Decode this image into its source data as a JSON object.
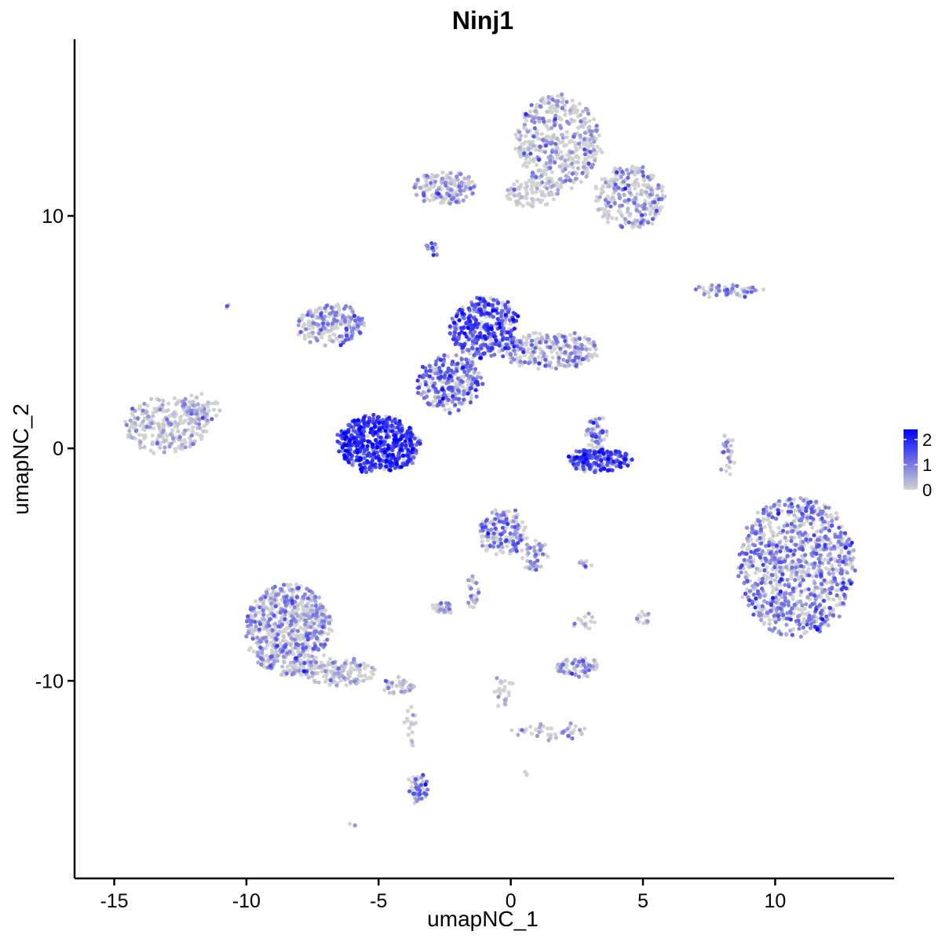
{
  "chart_data": {
    "type": "scatter",
    "title": "Ninj1",
    "xlabel": "umapNC_1",
    "ylabel": "umapNC_2",
    "xlim": [
      -16.5,
      14.5
    ],
    "ylim": [
      -18.5,
      17.6
    ],
    "xticks": [
      -15,
      -10,
      -5,
      0,
      5,
      10
    ],
    "xtick_labels": [
      "-15",
      "-10",
      "-5",
      "0",
      "5",
      "10"
    ],
    "yticks": [
      -10,
      0,
      10
    ],
    "ytick_labels": [
      "-10",
      "0",
      "10"
    ],
    "grid": false,
    "legend": {
      "placement": "right",
      "title": "",
      "ticks": [
        0,
        1,
        2
      ],
      "tick_labels": [
        "0",
        "1",
        "2"
      ],
      "range": [
        0,
        2.4
      ],
      "low_color": "#d3d3d3",
      "high_color": "#0000ff"
    },
    "clusters": [
      {
        "label_x": 1.8,
        "label_y": 13.2,
        "rx": 1.6,
        "ry": 2.0,
        "expr": 0.55,
        "n": 450
      },
      {
        "label_x": 4.5,
        "label_y": 10.8,
        "rx": 1.3,
        "ry": 1.4,
        "expr": 0.6,
        "n": 260
      },
      {
        "label_x": -2.5,
        "label_y": 11.2,
        "rx": 1.2,
        "ry": 0.7,
        "expr": 0.6,
        "n": 160
      },
      {
        "label_x": 0.8,
        "label_y": 11.0,
        "rx": 1.0,
        "ry": 0.6,
        "expr": 0.3,
        "n": 90
      },
      {
        "label_x": -3.0,
        "label_y": 8.6,
        "rx": 0.25,
        "ry": 0.25,
        "expr": 0.9,
        "n": 12
      },
      {
        "label_x": 8.3,
        "label_y": 6.8,
        "rx": 1.3,
        "ry": 0.25,
        "expr": 0.7,
        "n": 60
      },
      {
        "label_x": -6.8,
        "label_y": 5.3,
        "rx": 1.3,
        "ry": 0.9,
        "expr": 0.85,
        "n": 220
      },
      {
        "label_x": -1.0,
        "label_y": 5.2,
        "rx": 1.3,
        "ry": 1.3,
        "expr": 1.4,
        "n": 360
      },
      {
        "label_x": 1.5,
        "label_y": 4.2,
        "rx": 1.8,
        "ry": 0.8,
        "expr": 0.7,
        "n": 260
      },
      {
        "label_x": -2.3,
        "label_y": 2.8,
        "rx": 1.2,
        "ry": 1.2,
        "expr": 1.1,
        "n": 260
      },
      {
        "label_x": -5.0,
        "label_y": 0.2,
        "rx": 1.6,
        "ry": 1.2,
        "expr": 1.7,
        "n": 520
      },
      {
        "label_x": -13.0,
        "label_y": 1.0,
        "rx": 1.6,
        "ry": 1.2,
        "expr": 0.4,
        "n": 260
      },
      {
        "label_x": -11.8,
        "label_y": 1.7,
        "rx": 0.7,
        "ry": 0.6,
        "expr": 0.35,
        "n": 70
      },
      {
        "label_x": 3.3,
        "label_y": -0.5,
        "rx": 1.2,
        "ry": 0.5,
        "expr": 1.5,
        "n": 200
      },
      {
        "label_x": 3.2,
        "label_y": 0.7,
        "rx": 0.4,
        "ry": 0.7,
        "expr": 1.0,
        "n": 50
      },
      {
        "label_x": 8.2,
        "label_y": -0.3,
        "rx": 0.25,
        "ry": 0.9,
        "expr": 0.5,
        "n": 30
      },
      {
        "label_x": 10.8,
        "label_y": -5.1,
        "rx": 2.2,
        "ry": 3.0,
        "expr": 0.9,
        "n": 1000
      },
      {
        "label_x": -0.3,
        "label_y": -3.6,
        "rx": 0.9,
        "ry": 1.0,
        "expr": 0.9,
        "n": 160
      },
      {
        "label_x": 0.9,
        "label_y": -4.6,
        "rx": 0.5,
        "ry": 0.7,
        "expr": 0.6,
        "n": 45
      },
      {
        "label_x": -1.4,
        "label_y": -6.2,
        "rx": 0.25,
        "ry": 0.7,
        "expr": 0.5,
        "n": 25
      },
      {
        "label_x": -2.6,
        "label_y": -6.9,
        "rx": 0.4,
        "ry": 0.25,
        "expr": 0.7,
        "n": 30
      },
      {
        "label_x": -8.4,
        "label_y": -7.8,
        "rx": 1.6,
        "ry": 2.0,
        "expr": 0.7,
        "n": 700
      },
      {
        "label_x": -6.5,
        "label_y": -9.6,
        "rx": 1.4,
        "ry": 0.6,
        "expr": 0.45,
        "n": 150
      },
      {
        "label_x": -4.2,
        "label_y": -10.2,
        "rx": 0.6,
        "ry": 0.35,
        "expr": 0.5,
        "n": 40
      },
      {
        "label_x": -3.5,
        "label_y": -14.6,
        "rx": 0.35,
        "ry": 0.6,
        "expr": 1.0,
        "n": 50
      },
      {
        "label_x": -3.8,
        "label_y": -12.0,
        "rx": 0.2,
        "ry": 1.0,
        "expr": 0.2,
        "n": 18
      },
      {
        "label_x": 2.5,
        "label_y": -9.4,
        "rx": 0.8,
        "ry": 0.4,
        "expr": 0.7,
        "n": 80
      },
      {
        "label_x": -0.3,
        "label_y": -10.5,
        "rx": 0.3,
        "ry": 0.9,
        "expr": 0.3,
        "n": 25
      },
      {
        "label_x": 1.5,
        "label_y": -12.2,
        "rx": 1.5,
        "ry": 0.35,
        "expr": 0.4,
        "n": 45
      },
      {
        "label_x": 2.8,
        "label_y": -7.5,
        "rx": 0.5,
        "ry": 0.5,
        "expr": 0.5,
        "n": 15
      },
      {
        "label_x": 5.0,
        "label_y": -7.3,
        "rx": 0.25,
        "ry": 0.25,
        "expr": 0.6,
        "n": 15
      },
      {
        "label_x": 2.8,
        "label_y": -5.0,
        "rx": 0.3,
        "ry": 0.15,
        "expr": 0.8,
        "n": 10
      },
      {
        "label_x": -10.7,
        "label_y": 6.1,
        "rx": 0.1,
        "ry": 0.1,
        "expr": 1.2,
        "n": 3
      },
      {
        "label_x": -5.9,
        "label_y": -16.2,
        "rx": 0.15,
        "ry": 0.1,
        "expr": 0.8,
        "n": 3
      },
      {
        "label_x": 0.6,
        "label_y": -14.0,
        "rx": 0.1,
        "ry": 0.1,
        "expr": 0.8,
        "n": 3
      }
    ]
  }
}
